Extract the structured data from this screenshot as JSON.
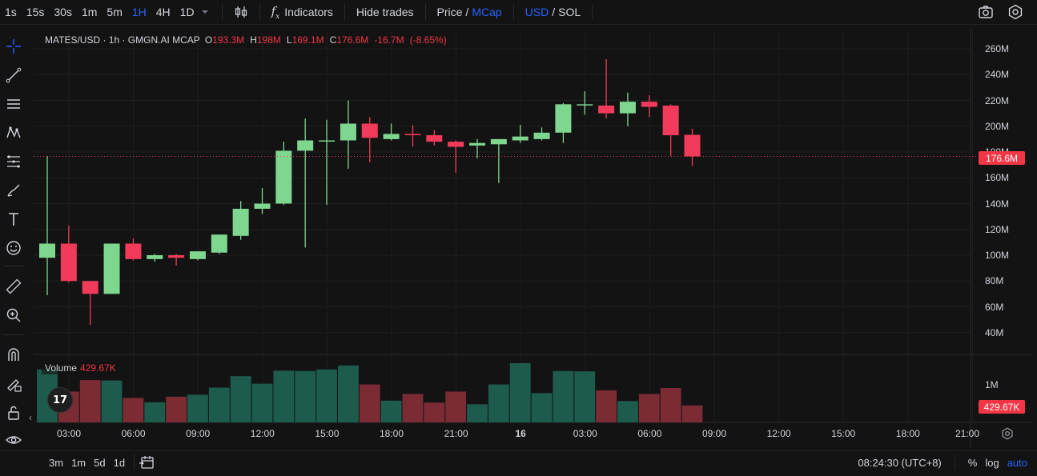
{
  "toolbar": {
    "timeframes": [
      "1s",
      "15s",
      "30s",
      "1m",
      "5m",
      "1H",
      "4H",
      "1D"
    ],
    "active_timeframe": "1H",
    "indicators_label": "Indicators",
    "hide_trades_label": "Hide trades",
    "price_label": "Price",
    "mcap_label": "MCap",
    "usd_label": "USD",
    "sol_label": "SOL",
    "slash": "/"
  },
  "legend": {
    "symbol": "MATES/USD · 1h · GMGN.AI MCAP",
    "o_key": "O",
    "o_val": "193.3M",
    "h_key": "H",
    "h_val": "198M",
    "l_key": "L",
    "l_val": "169.1M",
    "c_key": "C",
    "c_val": "176.6M",
    "change": "-16.7M",
    "change_pct": "(-8.65%)"
  },
  "volume_legend": {
    "label": "Volume",
    "value": "429.67K"
  },
  "tv_logo": "17",
  "price_axis": {
    "ticks": [
      "260M",
      "240M",
      "220M",
      "200M",
      "180M",
      "160M",
      "140M",
      "120M",
      "100M",
      "80M",
      "60M",
      "40M"
    ],
    "tick_values": [
      260,
      240,
      220,
      200,
      180,
      160,
      140,
      120,
      100,
      80,
      60,
      40
    ],
    "last_price_label": "176.6M",
    "last_price": 176.6,
    "volume_tick": "1M",
    "last_volume_label": "429.67K"
  },
  "time_axis": {
    "ticks": [
      "03:00",
      "06:00",
      "09:00",
      "12:00",
      "15:00",
      "18:00",
      "21:00",
      "16",
      "03:00",
      "06:00",
      "09:00",
      "12:00",
      "15:00",
      "18:00",
      "21:00"
    ],
    "bold_index": 7
  },
  "bottom": {
    "ranges": [
      "3m",
      "1m",
      "5d",
      "1d"
    ],
    "time": "08:24:30 (UTC+8)",
    "percent": "%",
    "log": "log",
    "auto": "auto"
  },
  "colors": {
    "up": "#7ed68f",
    "down": "#f23b5a",
    "vol_up": "#1d5b4c",
    "vol_down": "#7a2b34",
    "accent": "#2962ff"
  },
  "chart_data": {
    "type": "candlestick",
    "price_unit": "M",
    "interval": "1h",
    "ylim": [
      30,
      270
    ],
    "candles": [
      {
        "t": "01:00",
        "o": 98,
        "h": 177,
        "l": 69,
        "c": 109
      },
      {
        "t": "02:00",
        "o": 109,
        "h": 123,
        "l": 79,
        "c": 80
      },
      {
        "t": "03:00",
        "o": 80,
        "h": 80,
        "l": 46,
        "c": 70
      },
      {
        "t": "04:00",
        "o": 70,
        "h": 109,
        "l": 70,
        "c": 109
      },
      {
        "t": "05:00",
        "o": 109,
        "h": 113,
        "l": 96,
        "c": 97
      },
      {
        "t": "06:00",
        "o": 97,
        "h": 101,
        "l": 95,
        "c": 100
      },
      {
        "t": "07:00",
        "o": 100,
        "h": 101,
        "l": 92,
        "c": 98
      },
      {
        "t": "08:00",
        "o": 97,
        "h": 103,
        "l": 96,
        "c": 103
      },
      {
        "t": "09:00",
        "o": 102,
        "h": 116,
        "l": 101,
        "c": 116
      },
      {
        "t": "10:00",
        "o": 115,
        "h": 142,
        "l": 112,
        "c": 136
      },
      {
        "t": "11:00",
        "o": 136,
        "h": 152,
        "l": 132,
        "c": 140
      },
      {
        "t": "12:00",
        "o": 140,
        "h": 188,
        "l": 139,
        "c": 181
      },
      {
        "t": "13:00",
        "o": 181,
        "h": 206,
        "l": 106,
        "c": 189
      },
      {
        "t": "14:00",
        "o": 189,
        "h": 205,
        "l": 139,
        "c": 189
      },
      {
        "t": "15:00",
        "o": 189,
        "h": 220,
        "l": 167,
        "c": 202
      },
      {
        "t": "16:00",
        "o": 202,
        "h": 207,
        "l": 172,
        "c": 191
      },
      {
        "t": "17:00",
        "o": 190,
        "h": 202,
        "l": 189,
        "c": 194
      },
      {
        "t": "18:00",
        "o": 194,
        "h": 201,
        "l": 184,
        "c": 193
      },
      {
        "t": "19:00",
        "o": 193,
        "h": 197,
        "l": 185,
        "c": 188
      },
      {
        "t": "20:00",
        "o": 188,
        "h": 189,
        "l": 164,
        "c": 184
      },
      {
        "t": "21:00",
        "o": 185,
        "h": 190,
        "l": 175,
        "c": 187
      },
      {
        "t": "22:00",
        "o": 186,
        "h": 190,
        "l": 156,
        "c": 190
      },
      {
        "t": "23:00",
        "o": 189,
        "h": 201,
        "l": 187,
        "c": 192
      },
      {
        "t": "00:00",
        "o": 190,
        "h": 199,
        "l": 189,
        "c": 195
      },
      {
        "t": "01:00",
        "o": 195,
        "h": 218,
        "l": 187,
        "c": 217
      },
      {
        "t": "02:00",
        "o": 217,
        "h": 227,
        "l": 209,
        "c": 217
      },
      {
        "t": "03:00",
        "o": 216,
        "h": 252,
        "l": 206,
        "c": 210
      },
      {
        "t": "04:00",
        "o": 210,
        "h": 226,
        "l": 200,
        "c": 219
      },
      {
        "t": "05:00",
        "o": 219,
        "h": 224,
        "l": 207,
        "c": 215
      },
      {
        "t": "06:00",
        "o": 216,
        "h": 217,
        "l": 177,
        "c": 193
      },
      {
        "t": "07:00",
        "o": 193.3,
        "h": 198,
        "l": 169.1,
        "c": 176.6
      }
    ],
    "volume_unit": "K",
    "volumes": [
      1340,
      780,
      1070,
      1060,
      620,
      510,
      650,
      700,
      880,
      1170,
      980,
      1310,
      1300,
      1340,
      1440,
      960,
      550,
      720,
      500,
      780,
      460,
      960,
      1500,
      740,
      1300,
      1290,
      810,
      540,
      720,
      870,
      429.67
    ]
  }
}
